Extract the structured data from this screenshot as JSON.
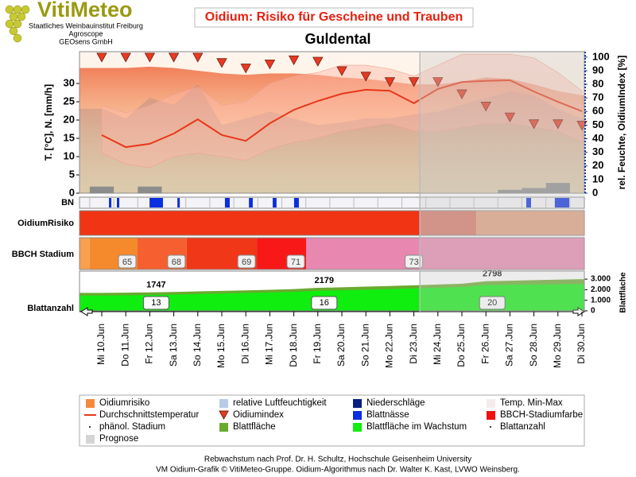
{
  "logo": {
    "name": "VitiMeteo",
    "lines": [
      "Staatliches Weinbauinstitut Freiburg",
      "Agroscope",
      "GEOsens GmbH"
    ]
  },
  "chart_data": {
    "type": "oidium",
    "title": "Oidium: Risiko für Gescheine und Trauben",
    "subtitle": "Guldental",
    "ylabel": "T. [°C], N. [mm/h]",
    "y2label": "rel. Feuchte, OidiumIndex [%]",
    "y3label": "Blattfläche",
    "ylim": [
      0,
      38.7
    ],
    "yticks": [
      0,
      5,
      10,
      15,
      20,
      25,
      30
    ],
    "y2lim": [
      0,
      104
    ],
    "y2ticks": [
      0,
      10,
      20,
      30,
      40,
      50,
      60,
      70,
      80,
      90,
      100
    ],
    "y3lim": [
      0,
      3760
    ],
    "y3ticks": [
      0,
      {
        "value": 1000,
        "label": "1.000"
      },
      {
        "value": 2000,
        "label": "2.000"
      },
      {
        "value": 3000,
        "label": "3.000"
      }
    ],
    "categories": [
      "Mi 10.Jun",
      "Do 11.Jun",
      "Fr 12.Jun",
      "Sa 13.Jun",
      "So 14.Jun",
      "Mo 15.Jun",
      "Di 16.Jun",
      "Mi 17.Jun",
      "Do 18.Jun",
      "Fr 19.Jun",
      "Sa 20.Jun",
      "So 21.Jun",
      "Mo 22.Jun",
      "Di 23.Jun",
      "Mi 24.Jun",
      "Do 25.Jun",
      "Fr 26.Jun",
      "Sa 27.Jun",
      "So 28.Jun",
      "Mo 29.Jun",
      "Di 30.Jun"
    ],
    "risk_area": {
      "color": "#f07a52",
      "values": [
        92,
        92,
        93,
        92,
        90,
        88,
        87,
        88,
        88,
        87,
        85,
        84,
        82,
        80,
        80,
        82,
        85,
        84,
        80,
        75,
        72
      ]
    },
    "humidity": {
      "color": "#a08888",
      "values": [
        62,
        55,
        70,
        65,
        80,
        50,
        55,
        60,
        55,
        50,
        52,
        55,
        55,
        58,
        60,
        65,
        70,
        75,
        72,
        62,
        55
      ]
    },
    "temp_max": {
      "color": "#ffb8a8",
      "values": [
        24,
        22,
        24,
        27,
        29,
        24,
        25,
        30,
        32,
        33,
        35,
        35,
        34,
        32,
        35,
        38,
        38,
        38,
        37,
        33,
        28
      ]
    },
    "temp_min": {
      "values": [
        11,
        8,
        7,
        10,
        11,
        10,
        9,
        12,
        14,
        15,
        17,
        18,
        19,
        17,
        17,
        18,
        19,
        19,
        18,
        17,
        14
      ]
    },
    "temp_mean": {
      "color": "#e8381c",
      "values": [
        15.9,
        12.6,
        13.5,
        16.3,
        20.2,
        15.9,
        14.3,
        19.1,
        22.8,
        25.2,
        27.2,
        28.3,
        28,
        24.6,
        28.5,
        30.4,
        30.7,
        30.9,
        27.8,
        25,
        22.4
      ]
    },
    "oidium_index": {
      "color": "#e83a22",
      "values": [
        100,
        100,
        100,
        100,
        100,
        96,
        92,
        95,
        98,
        97,
        90,
        86,
        82,
        82,
        82,
        73,
        64,
        56,
        51,
        51,
        50
      ]
    },
    "precipitation": {
      "color": "#8c8c8c",
      "values": [
        1.8,
        0,
        1.8,
        0,
        0,
        0,
        0,
        0,
        0,
        0,
        0,
        0,
        0,
        0,
        0,
        0,
        0,
        0.9,
        1.4,
        2.8,
        0
      ]
    },
    "prognose_start": 13.25,
    "rows": {
      "bn": "BN",
      "risk": "OidiumRisiko",
      "bbch": "BBCH Stadium",
      "leaves": "Blattanzahl"
    },
    "bn_color": "#0a2ee0",
    "bn_intervals": [
      [
        0.3,
        0.4
      ],
      [
        0.63,
        0.73
      ],
      [
        1.99,
        2.55
      ],
      [
        3.15,
        3.25
      ],
      [
        5.13,
        5.33
      ],
      [
        6.13,
        6.29
      ],
      [
        7.12,
        7.28
      ],
      [
        8.01,
        8.21
      ],
      [
        17.68,
        17.88
      ],
      [
        18.87,
        19.47
      ]
    ],
    "risk_segments": [
      {
        "start": -0.93,
        "end": 13.25,
        "color": "#f03414"
      },
      {
        "start": 13.25,
        "end": 15.6,
        "color": "#d87868"
      },
      {
        "start": 15.6,
        "end": 20.1,
        "color": "#e0a080"
      }
    ],
    "bbch": [
      {
        "start": -0.93,
        "end": -0.5,
        "color": "#f8a050"
      },
      {
        "stage": 65,
        "start": -0.5,
        "end": 1.49,
        "color": "#f58a2c"
      },
      {
        "stage": 68,
        "start": 1.49,
        "end": 3.54,
        "color": "#f66030"
      },
      {
        "stage": 69,
        "start": 3.54,
        "end": 6.46,
        "color": "#f03818"
      },
      {
        "stage": 71,
        "start": 6.46,
        "end": 8.51,
        "color": "#f81818"
      },
      {
        "stage": 73,
        "start": 8.51,
        "end": 20.1,
        "color": "#e888b0"
      }
    ],
    "leaf_area": {
      "color": "#6aaa30",
      "values": [
        1700,
        1720,
        1747,
        1790,
        1840,
        1890,
        1940,
        1990,
        2060,
        2179,
        2230,
        2290,
        2350,
        2420,
        2490,
        2570,
        2798,
        2850,
        2900,
        2950,
        3000
      ]
    },
    "leaf_growing": {
      "color": "#10ee10",
      "values": [
        1450,
        1470,
        1500,
        1540,
        1590,
        1640,
        1690,
        1740,
        1800,
        1900,
        1950,
        2000,
        2060,
        2120,
        2190,
        2260,
        2450,
        2480,
        2500,
        2520,
        2540
      ]
    },
    "leaf_area_labels": [
      {
        "category": "Fr 12.Jun",
        "value": 1747
      },
      {
        "category": "Fr 19.Jun",
        "value": 2179
      },
      {
        "category": "Fr 26.Jun",
        "value": 2798
      }
    ],
    "leaf_counts": [
      {
        "category": "Fr 12.Jun",
        "value": 13
      },
      {
        "category": "Fr 19.Jun",
        "value": 16
      },
      {
        "category": "Fr 26.Jun",
        "value": 20
      }
    ],
    "legend": [
      {
        "name": "Oidiumrisiko",
        "color": "#f58a3c",
        "symbol": "square"
      },
      {
        "name": "relative Luftfeuchtigkeit",
        "color": "#b8cce8",
        "symbol": "square"
      },
      {
        "name": "Niederschläge",
        "color": "#0a1e80",
        "symbol": "square"
      },
      {
        "name": "Temp. Min-Max",
        "color": "#f4ecec",
        "symbol": "square"
      },
      {
        "name": "Durchschnittstemperatur",
        "color": "#e8381c",
        "symbol": "line"
      },
      {
        "name": "Oidiumindex",
        "color": "#e83a22",
        "symbol": "triangle"
      },
      {
        "name": "Blattnässe",
        "color": "#0a2ee0",
        "symbol": "square"
      },
      {
        "name": "BBCH-Stadiumfarbe",
        "color": "#f01010",
        "symbol": "square"
      },
      {
        "name": "phänol. Stadium",
        "color": "#000000",
        "symbol": "dot"
      },
      {
        "name": "Blattfläche",
        "color": "#6aaa30",
        "symbol": "square"
      },
      {
        "name": "Blattfläche im Wachstum",
        "color": "#10ee10",
        "symbol": "square"
      },
      {
        "name": "Blattanzahl",
        "color": "#000000",
        "symbol": "dot"
      },
      {
        "name": "Prognose",
        "color": "#d4d4d4",
        "symbol": "square"
      }
    ]
  },
  "footer": [
    "Rebwachstum nach Prof. Dr. H. Schultz, Hochschule Geisenheim University",
    "VM Oidium-Grafik © VitiMeteo-Gruppe. Oidium-Algorithmus nach Dr. Walter K. Kast, LVWO Weinsberg."
  ]
}
